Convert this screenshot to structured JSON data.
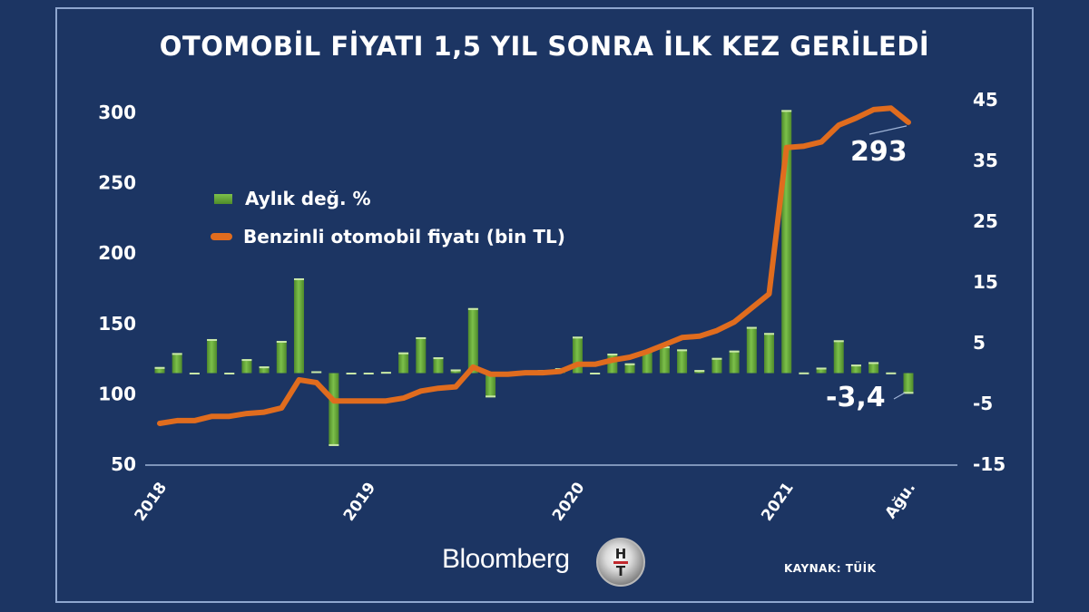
{
  "title": "OTOMOBİL FİYATI 1,5 YIL SONRA İLK KEZ GERİLEDİ",
  "legend": {
    "bar_label": "Aylık değ. %",
    "line_label": "Benzinli otomobil fiyatı (bin TL)"
  },
  "annotations": {
    "last_price": "293",
    "last_change": "-3,4"
  },
  "footer": {
    "brand": "Bloomberg",
    "logo_text_top": "H",
    "logo_text_bottom": "T",
    "source": "KAYNAK: TÜİK"
  },
  "colors": {
    "background": "#1c3563",
    "bar": "#6aaa3a",
    "line": "#e06c1e",
    "text": "#ffffff",
    "frame": "#8ea6cf"
  },
  "chart_data": {
    "type": "bar+line",
    "title": "OTOMOBİL FİYATI 1,5 YIL SONRA İLK KEZ GERİLEDİ",
    "xlabel": "",
    "x_tick_labels": [
      "2018",
      "2019",
      "2020",
      "2021",
      "Ağu."
    ],
    "x_tick_index": [
      0,
      12,
      24,
      36,
      43
    ],
    "categories": [
      "2018-01",
      "2018-02",
      "2018-03",
      "2018-04",
      "2018-05",
      "2018-06",
      "2018-07",
      "2018-08",
      "2018-09",
      "2018-10",
      "2018-11",
      "2018-12",
      "2019-01",
      "2019-02",
      "2019-03",
      "2019-04",
      "2019-05",
      "2019-06",
      "2019-07",
      "2019-08",
      "2019-09",
      "2019-10",
      "2019-11",
      "2019-12",
      "2020-01",
      "2020-02",
      "2020-03",
      "2020-04",
      "2020-05",
      "2020-06",
      "2020-07",
      "2020-08",
      "2020-09",
      "2020-10",
      "2020-11",
      "2020-12",
      "2021-01",
      "2021-02",
      "2021-03",
      "2021-04",
      "2021-05",
      "2021-06",
      "2021-07",
      "2021-08"
    ],
    "left_axis": {
      "label": "Benzinli otomobil fiyatı (bin TL)",
      "ticks": [
        300,
        250,
        200,
        150,
        100,
        50
      ],
      "range": [
        50,
        300
      ]
    },
    "right_axis": {
      "label": "Aylık değ. %",
      "ticks": [
        45,
        35,
        25,
        15,
        5,
        -5,
        -15
      ],
      "range": [
        -15,
        45
      ]
    },
    "legend_position": "upper-left",
    "grid": false,
    "series": [
      {
        "name": "Aylık değ. %",
        "type": "bar",
        "axis": "right",
        "values": [
          1.0,
          3.3,
          -0.2,
          5.6,
          -0.1,
          2.3,
          1.1,
          5.3,
          15.6,
          0.3,
          -12.0,
          -0.1,
          -0.1,
          0.2,
          3.4,
          5.9,
          2.6,
          0.6,
          10.7,
          -4.0,
          -0.1,
          0.2,
          0.5,
          0.8,
          6.0,
          -0.2,
          3.2,
          1.6,
          3.7,
          4.4,
          3.9,
          0.5,
          2.5,
          3.7,
          7.6,
          6.6,
          43.3,
          0.1,
          0.9,
          5.4,
          1.4,
          1.8,
          0.1,
          -3.4
        ]
      },
      {
        "name": "Benzinli otomobil fiyatı (bin TL)",
        "type": "line",
        "axis": "left",
        "values": [
          79,
          81,
          81,
          84,
          84,
          86,
          87,
          90,
          110,
          108,
          95,
          95,
          95,
          95,
          97,
          102,
          104,
          105,
          119,
          114,
          114,
          115,
          115,
          116,
          121,
          121,
          124,
          126,
          130,
          135,
          140,
          141,
          145,
          151,
          161,
          171,
          275,
          276,
          279,
          291,
          296,
          302,
          303,
          293
        ]
      }
    ],
    "annotations": [
      {
        "series": "Benzinli otomobil fiyatı (bin TL)",
        "index": 43,
        "text": "293"
      },
      {
        "series": "Aylık değ. %",
        "index": 43,
        "text": "-3,4"
      }
    ],
    "source": "KAYNAK: TÜİK"
  }
}
